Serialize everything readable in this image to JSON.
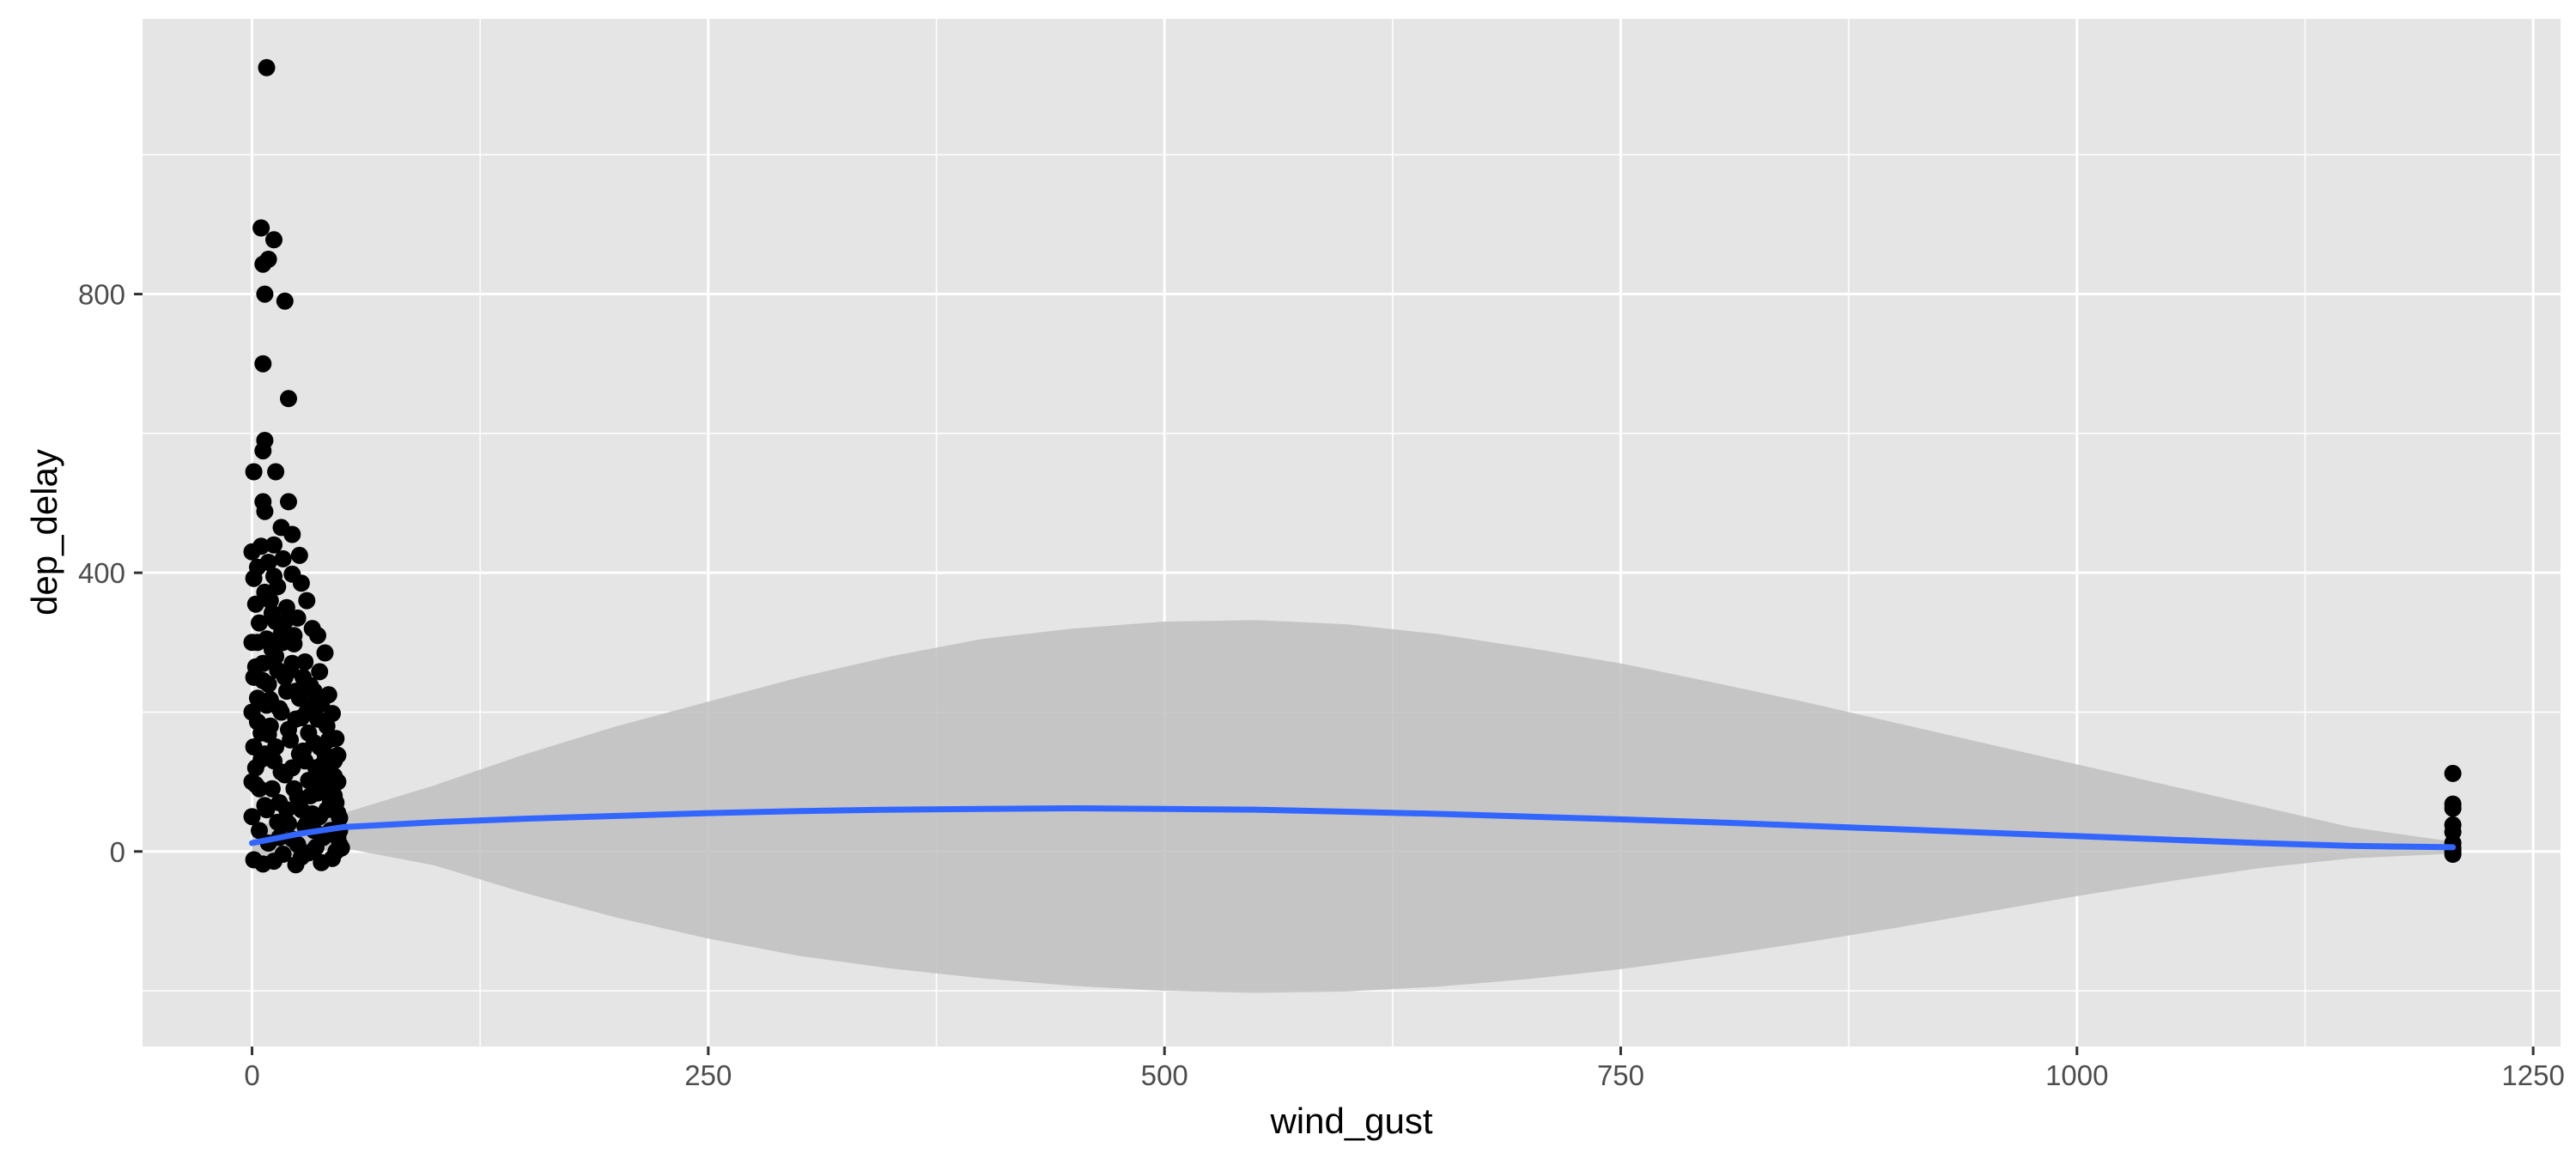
{
  "chart_data": {
    "type": "scatter",
    "title": "",
    "xlabel": "wind_gust",
    "ylabel": "dep_delay",
    "xlim": [
      -60,
      1265
    ],
    "ylim": [
      -280,
      1195
    ],
    "x_ticks": [
      0,
      250,
      500,
      750,
      1000,
      1250
    ],
    "y_ticks": [
      0,
      400,
      800
    ],
    "x_tick_labels": [
      "0",
      "250",
      "500",
      "750",
      "1000",
      "1250"
    ],
    "y_tick_labels": [
      "0",
      "400",
      "800"
    ],
    "grid": true,
    "legend": "none",
    "colors": {
      "panel_background": "#e5e5e5",
      "grid_major": "#ffffff",
      "point": "#000000",
      "smooth_line": "#3366ff",
      "confidence_band": "#bfbfbf"
    },
    "series": [
      {
        "type": "scatter",
        "points": [
          [
            8,
            1125
          ],
          [
            5,
            895
          ],
          [
            12,
            878
          ],
          [
            9,
            850
          ],
          [
            6,
            843
          ],
          [
            7,
            800
          ],
          [
            18,
            790
          ],
          [
            6,
            700
          ],
          [
            20,
            650
          ],
          [
            7,
            590
          ],
          [
            6,
            575
          ],
          [
            1,
            545
          ],
          [
            13,
            545
          ],
          [
            6,
            502
          ],
          [
            20,
            502
          ],
          [
            7,
            488
          ],
          [
            16,
            465
          ],
          [
            22,
            455
          ],
          [
            12,
            440
          ],
          [
            5,
            438
          ],
          [
            0,
            430
          ],
          [
            26,
            425
          ],
          [
            17,
            420
          ],
          [
            9,
            415
          ],
          [
            3,
            408
          ],
          [
            22,
            398
          ],
          [
            1,
            392
          ],
          [
            27,
            385
          ],
          [
            14,
            380
          ],
          [
            7,
            372
          ],
          [
            30,
            360
          ],
          [
            2,
            355
          ],
          [
            19,
            350
          ],
          [
            11,
            342
          ],
          [
            25,
            335
          ],
          [
            4,
            328
          ],
          [
            33,
            320
          ],
          [
            16,
            312
          ],
          [
            36,
            310
          ],
          [
            8,
            305
          ],
          [
            23,
            298
          ],
          [
            40,
            285
          ],
          [
            13,
            280
          ],
          [
            29,
            272
          ],
          [
            2,
            265
          ],
          [
            37,
            258
          ],
          [
            18,
            250
          ],
          [
            6,
            245
          ],
          [
            32,
            238
          ],
          [
            24,
            230
          ],
          [
            42,
            225
          ],
          [
            10,
            218
          ],
          [
            38,
            212
          ],
          [
            15,
            205
          ],
          [
            44,
            198
          ],
          [
            27,
            192
          ],
          [
            3,
            186
          ],
          [
            41,
            180
          ],
          [
            20,
            175
          ],
          [
            9,
            168
          ],
          [
            46,
            162
          ],
          [
            34,
            156
          ],
          [
            13,
            150
          ],
          [
            28,
            144
          ],
          [
            47,
            138
          ],
          [
            5,
            132
          ],
          [
            39,
            126
          ],
          [
            22,
            120
          ],
          [
            16,
            114
          ],
          [
            45,
            108
          ],
          [
            31,
            102
          ],
          [
            2,
            96
          ],
          [
            11,
            90
          ],
          [
            36,
            84
          ],
          [
            25,
            78
          ],
          [
            43,
            72
          ],
          [
            7,
            66
          ],
          [
            19,
            60
          ],
          [
            33,
            54
          ],
          [
            48,
            48
          ],
          [
            14,
            42
          ],
          [
            29,
            36
          ],
          [
            4,
            30
          ],
          [
            40,
            24
          ],
          [
            22,
            18
          ],
          [
            9,
            12
          ],
          [
            35,
            6
          ],
          [
            46,
            0
          ],
          [
            17,
            -4
          ],
          [
            27,
            -8
          ],
          [
            1,
            -12
          ],
          [
            12,
            -14
          ],
          [
            38,
            -16
          ],
          [
            6,
            -18
          ],
          [
            24,
            -19
          ],
          [
            44,
            -10
          ],
          [
            31,
            -2
          ],
          [
            15,
            70
          ],
          [
            26,
            140
          ],
          [
            8,
            210
          ],
          [
            21,
            260
          ],
          [
            34,
            230
          ],
          [
            3,
            300
          ],
          [
            18,
            330
          ],
          [
            10,
            360
          ],
          [
            12,
            395
          ],
          [
            23,
            310
          ],
          [
            30,
            200
          ],
          [
            37,
            150
          ],
          [
            42,
            110
          ],
          [
            45,
            80
          ],
          [
            47,
            55
          ],
          [
            48,
            30
          ],
          [
            47,
            20
          ],
          [
            49,
            5
          ],
          [
            0,
            100
          ],
          [
            0,
            200
          ],
          [
            0,
            300
          ],
          [
            0,
            50
          ],
          [
            1,
            150
          ],
          [
            1,
            250
          ],
          [
            2,
            120
          ],
          [
            3,
            220
          ],
          [
            4,
            90
          ],
          [
            5,
            170
          ],
          [
            6,
            270
          ],
          [
            7,
            140
          ],
          [
            8,
            60
          ],
          [
            9,
            240
          ],
          [
            10,
            180
          ],
          [
            11,
            290
          ],
          [
            12,
            130
          ],
          [
            13,
            330
          ],
          [
            14,
            260
          ],
          [
            15,
            20
          ],
          [
            16,
            200
          ],
          [
            17,
            300
          ],
          [
            18,
            110
          ],
          [
            19,
            230
          ],
          [
            20,
            40
          ],
          [
            21,
            160
          ],
          [
            22,
            270
          ],
          [
            23,
            90
          ],
          [
            24,
            190
          ],
          [
            25,
            10
          ],
          [
            26,
            220
          ],
          [
            27,
            60
          ],
          [
            28,
            250
          ],
          [
            29,
            130
          ],
          [
            30,
            40
          ],
          [
            31,
            170
          ],
          [
            32,
            80
          ],
          [
            33,
            210
          ],
          [
            34,
            30
          ],
          [
            35,
            120
          ],
          [
            36,
            190
          ],
          [
            37,
            50
          ],
          [
            38,
            100
          ],
          [
            39,
            20
          ],
          [
            40,
            140
          ],
          [
            41,
            60
          ],
          [
            42,
            160
          ],
          [
            43,
            30
          ],
          [
            44,
            90
          ],
          [
            45,
            130
          ],
          [
            46,
            70
          ],
          [
            47,
            100
          ],
          [
            48,
            10
          ],
          [
            1206,
            112
          ],
          [
            1206,
            68
          ],
          [
            1206,
            62
          ],
          [
            1206,
            38
          ],
          [
            1206,
            28
          ],
          [
            1206,
            12
          ],
          [
            1206,
            5
          ],
          [
            1206,
            0
          ],
          [
            1206,
            -4
          ]
        ]
      },
      {
        "type": "smooth",
        "x": [
          0,
          25,
          50,
          100,
          150,
          200,
          250,
          300,
          350,
          400,
          450,
          500,
          550,
          600,
          650,
          700,
          750,
          800,
          850,
          900,
          950,
          1000,
          1050,
          1100,
          1150,
          1206
        ],
        "y": [
          12,
          25,
          35,
          42,
          47,
          51,
          55,
          58,
          60,
          61,
          62,
          61,
          60,
          57,
          54,
          50,
          46,
          42,
          37,
          32,
          27,
          22,
          17,
          12,
          8,
          6
        ],
        "lower": [
          -20,
          -5,
          5,
          -20,
          -60,
          -95,
          -125,
          -150,
          -168,
          -182,
          -193,
          -200,
          -203,
          -201,
          -194,
          -183,
          -169,
          -151,
          -131,
          -110,
          -87,
          -64,
          -43,
          -24,
          -10,
          -3
        ],
        "upper": [
          40,
          40,
          55,
          95,
          140,
          180,
          215,
          250,
          280,
          305,
          320,
          330,
          332,
          326,
          312,
          292,
          270,
          243,
          215,
          185,
          155,
          125,
          95,
          65,
          35,
          14
        ]
      }
    ]
  }
}
